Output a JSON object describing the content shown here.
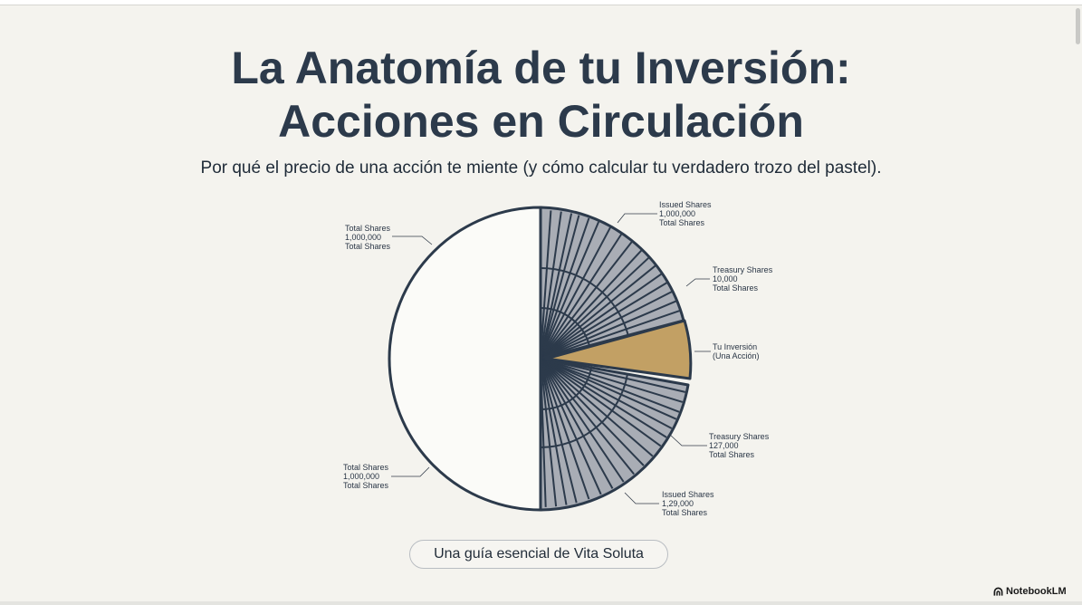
{
  "title_line1": "La Anatomía de tu Inversión:",
  "title_line2": "Acciones en Circulación",
  "subtitle": "Por qué el precio de una acción te miente (y cómo calcular tu verdadero trozo del pastel).",
  "callouts": [
    {
      "title": "Total Shares",
      "value": "1,000,000",
      "unit": "Total Shares"
    },
    {
      "title": "Total Shares",
      "value": "1,000,000",
      "unit": "Total Shares"
    },
    {
      "title": "Issued Shares",
      "value": "1,000,000",
      "unit": "Total Shares"
    },
    {
      "title": "Treasury Shares",
      "value": "10,000",
      "unit": "Total Shares"
    },
    {
      "title": "Tu Inversión",
      "value": "(Una Acción)"
    },
    {
      "title": "Treasury Shares",
      "value": "127,000",
      "unit": "Total Shares"
    },
    {
      "title": "Issued Shares",
      "value": "1,29,000",
      "unit": "Total Shares"
    }
  ],
  "guide_label": "Una guía esencial de Vita Soluta",
  "brand": "NotebookLM",
  "colors": {
    "background": "#f4f3ee",
    "navy": "#2c3a4b",
    "slice_gray": "#a9adb5",
    "investment_gold": "#c2a064"
  },
  "icons": [
    "notebooklm-logo-icon"
  ]
}
